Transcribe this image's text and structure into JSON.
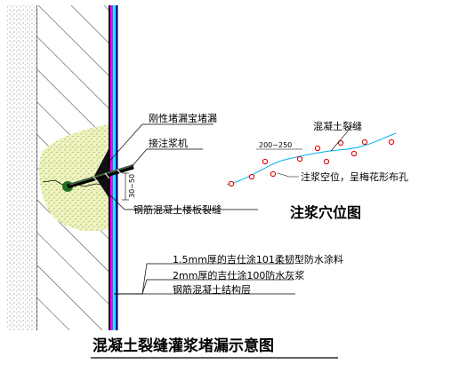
{
  "diagram": {
    "title": "混凝土裂缝灌浆堵漏示意图",
    "hole_layout_title": "注浆穴位图",
    "labels": {
      "rigid_plug": "刚性堵漏宝堵漏",
      "injection_machine": "接注浆机",
      "slab_crack": "钢筋混凝土楼板裂缝",
      "dim_vertical": "30~50",
      "concrete_crack": "混凝土裂缝",
      "hole_spacing": "200~250",
      "holes_note": "注浆空位，呈梅花形布孔",
      "layer_1": "1.5mm厚的吉仕涂101柔韧型防水涂料",
      "layer_2": "2mm厚的吉仕涂100防水灰浆",
      "layer_3": "钢筋混凝土结构层"
    },
    "colors": {
      "grout_fill": "#e8f0b0",
      "crack_line": "#00b0f0",
      "membrane_magenta": "#ff00ff",
      "membrane_cyan": "#00ffff",
      "membrane_blue": "#0000ff",
      "hole_marker": "#e00000",
      "nozzle_green": "#207020"
    }
  }
}
